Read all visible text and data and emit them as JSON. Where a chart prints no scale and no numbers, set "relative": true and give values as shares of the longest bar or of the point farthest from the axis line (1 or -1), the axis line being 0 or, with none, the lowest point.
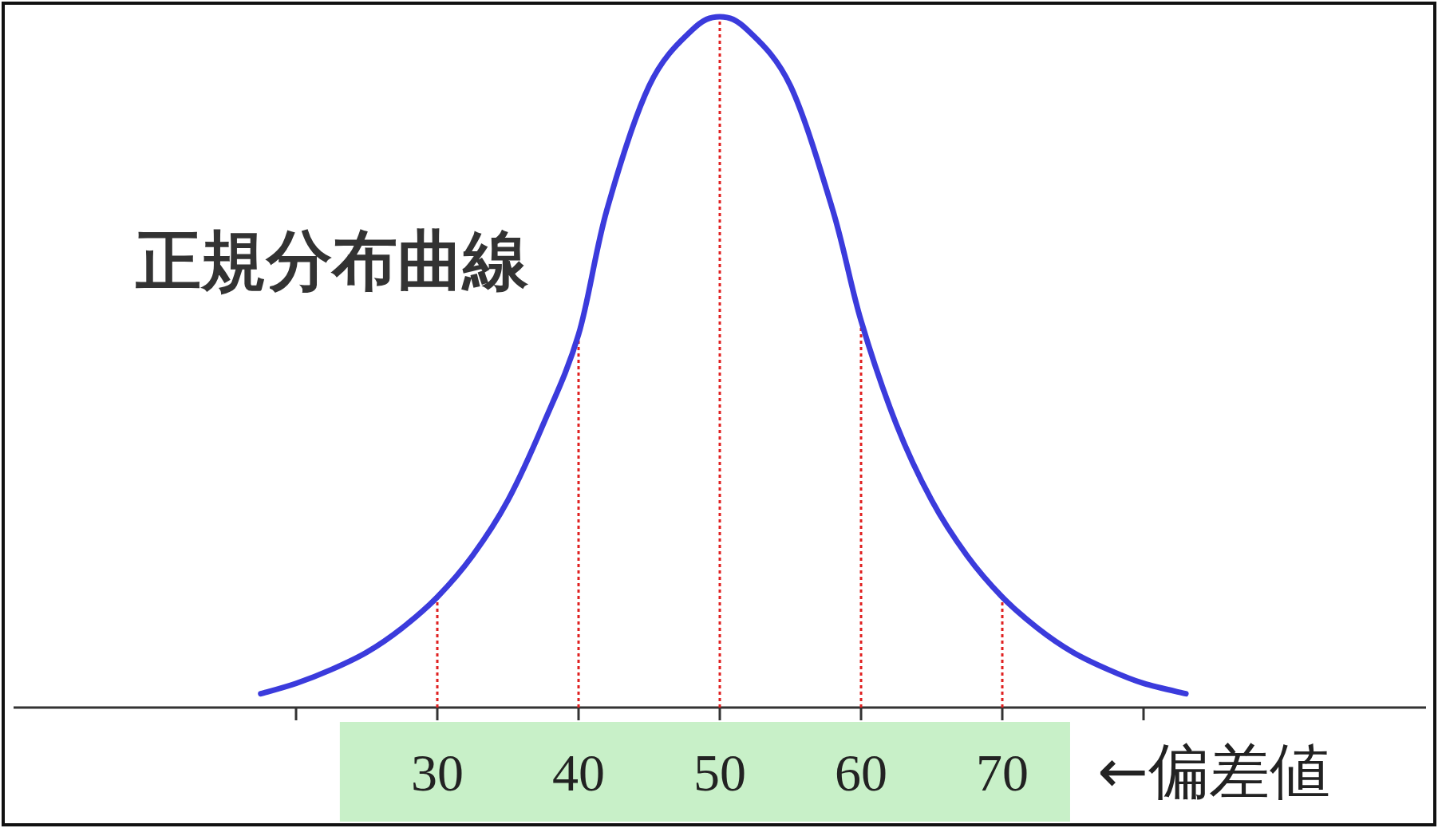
{
  "chart_data": {
    "type": "line",
    "relative": true,
    "x": [
      17.5,
      20,
      22.5,
      25,
      27.5,
      30,
      32.5,
      35,
      37.5,
      40,
      42,
      45,
      48,
      50,
      52,
      55,
      58,
      60,
      62.5,
      65,
      67.5,
      70,
      72.5,
      75,
      77.5,
      80,
      83
    ],
    "series": [
      {
        "color": "#3b3bdc",
        "values": [
          0.02,
          0.035,
          0.055,
          0.08,
          0.115,
          0.16,
          0.22,
          0.3,
          0.41,
          0.54,
          0.72,
          0.9,
          0.98,
          1.0,
          0.98,
          0.9,
          0.72,
          0.56,
          0.41,
          0.3,
          0.22,
          0.16,
          0.115,
          0.08,
          0.055,
          0.035,
          0.02
        ]
      }
    ],
    "xlim": [
      0,
      100
    ],
    "xticks": [
      {
        "value": 20,
        "label": null
      },
      30,
      40,
      50,
      60,
      70,
      {
        "value": 80,
        "label": null
      }
    ],
    "tick_labels": "x",
    "grid": false,
    "marker": "none",
    "line_style": "solid",
    "ref_lines": [
      {
        "axis": "x",
        "value": 30,
        "color": "#e02020",
        "line_style": "dotted"
      },
      {
        "axis": "x",
        "value": 40,
        "color": "#e02020",
        "line_style": "dotted"
      },
      {
        "axis": "x",
        "value": 50,
        "color": "#e02020",
        "line_style": "dotted"
      },
      {
        "axis": "x",
        "value": 60,
        "color": "#e02020",
        "line_style": "dotted"
      },
      {
        "axis": "x",
        "value": 70,
        "color": "#e02020",
        "line_style": "dotted"
      }
    ],
    "annotations": [
      "正規分布曲線",
      "←偏差値"
    ]
  }
}
